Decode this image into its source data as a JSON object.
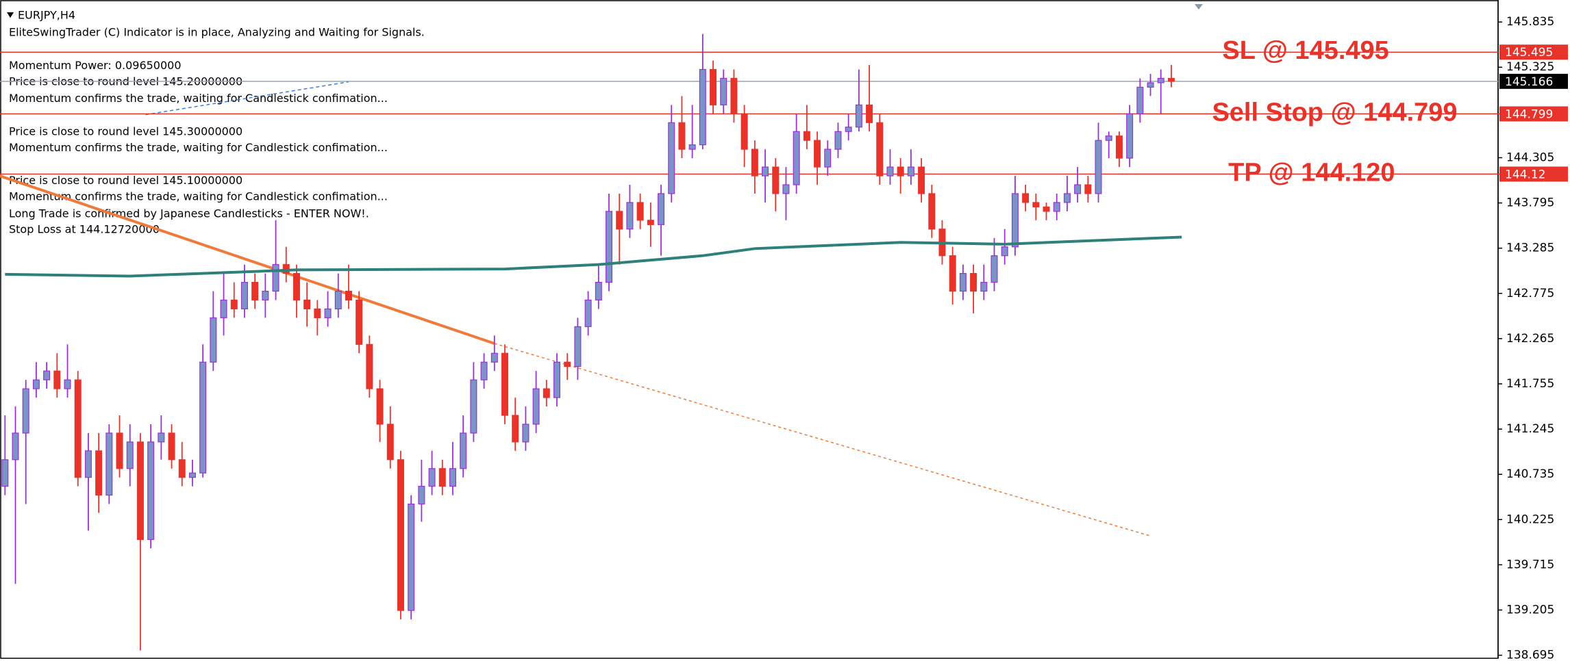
{
  "chart_data": {
    "type": "candlestick",
    "symbol": "EURJPY,H4",
    "info_lines": [
      "EliteSwingTrader (C) Indicator is in place, Analyzing and Waiting for Signals.",
      "Momentum Power: 0.09650000",
      "Price is close to round level 145.20000000",
      "Momentum confirms the trade, waiting for Candlestick confimation...",
      "Price is close to round level 145.30000000",
      "Momentum confirms the trade, waiting for Candlestick confimation...",
      "Price is close to round level 145.10000000",
      "Momentum confirms the trade, waiting for Candlestick confimation...",
      "Long Trade is confirmed by Japanese Candlesticks - ENTER NOW!.",
      "Stop Loss at 144.12720000"
    ],
    "ylim": [
      138.661,
      146.083
    ],
    "yticks": [
      145.835,
      145.325,
      144.305,
      143.795,
      143.285,
      142.775,
      142.265,
      141.755,
      141.245,
      140.735,
      140.225,
      139.715,
      139.205,
      138.695
    ],
    "levels": [
      {
        "value": 145.495,
        "annotation": "SL @ 145.495",
        "color": "#e8332b"
      },
      {
        "value": 144.799,
        "annotation": "Sell Stop @ 144.799",
        "color": "#e8332b"
      },
      {
        "value": 144.12,
        "annotation": "TP @ 144.120",
        "color": "#e8332b"
      }
    ],
    "current_price": 145.166,
    "bull_color": "#7b93c6",
    "bull_wick_color": "#9b30d9",
    "bear_color": "#e8332b",
    "candles": [
      [
        140.6,
        141.4,
        140.5,
        140.9
      ],
      [
        140.9,
        141.5,
        139.5,
        141.2
      ],
      [
        141.2,
        141.8,
        140.4,
        141.7
      ],
      [
        141.7,
        142.0,
        141.6,
        141.8
      ],
      [
        141.8,
        142.0,
        141.7,
        141.9
      ],
      [
        141.9,
        142.1,
        141.6,
        141.7
      ],
      [
        141.7,
        142.2,
        141.6,
        141.8
      ],
      [
        141.8,
        141.9,
        140.6,
        140.7
      ],
      [
        140.7,
        141.2,
        140.1,
        141.0
      ],
      [
        141.0,
        141.2,
        140.3,
        140.5
      ],
      [
        140.5,
        141.3,
        140.4,
        141.2
      ],
      [
        141.2,
        141.4,
        140.7,
        140.8
      ],
      [
        140.8,
        141.3,
        140.6,
        141.1
      ],
      [
        141.1,
        141.2,
        138.75,
        140.0
      ],
      [
        140.0,
        141.3,
        139.9,
        141.1
      ],
      [
        141.1,
        141.4,
        140.9,
        141.2
      ],
      [
        141.2,
        141.3,
        140.8,
        140.9
      ],
      [
        140.9,
        141.1,
        140.6,
        140.7
      ],
      [
        140.7,
        140.9,
        140.6,
        140.75
      ],
      [
        140.75,
        142.2,
        140.7,
        142.0
      ],
      [
        142.0,
        142.8,
        141.9,
        142.5
      ],
      [
        142.5,
        143.0,
        142.3,
        142.7
      ],
      [
        142.7,
        142.9,
        142.5,
        142.6
      ],
      [
        142.6,
        143.1,
        142.5,
        142.9
      ],
      [
        142.9,
        143.0,
        142.6,
        142.7
      ],
      [
        142.7,
        143.0,
        142.5,
        142.8
      ],
      [
        142.8,
        143.6,
        142.7,
        143.1
      ],
      [
        143.1,
        143.3,
        142.9,
        143.0
      ],
      [
        143.0,
        143.1,
        142.5,
        142.7
      ],
      [
        142.7,
        142.9,
        142.4,
        142.6
      ],
      [
        142.6,
        142.7,
        142.3,
        142.5
      ],
      [
        142.5,
        142.8,
        142.4,
        142.6
      ],
      [
        142.6,
        143.0,
        142.5,
        142.8
      ],
      [
        142.8,
        143.1,
        142.6,
        142.7
      ],
      [
        142.7,
        142.8,
        142.1,
        142.2
      ],
      [
        142.2,
        142.3,
        141.6,
        141.7
      ],
      [
        141.7,
        141.8,
        141.1,
        141.3
      ],
      [
        141.3,
        141.5,
        140.8,
        140.9
      ],
      [
        140.9,
        141.0,
        139.1,
        139.2
      ],
      [
        139.2,
        140.5,
        139.1,
        140.4
      ],
      [
        140.4,
        140.9,
        140.2,
        140.6
      ],
      [
        140.6,
        141.0,
        140.5,
        140.8
      ],
      [
        140.8,
        140.9,
        140.5,
        140.6
      ],
      [
        140.6,
        141.1,
        140.5,
        140.8
      ],
      [
        140.8,
        141.4,
        140.7,
        141.2
      ],
      [
        141.2,
        142.0,
        141.1,
        141.8
      ],
      [
        141.8,
        142.1,
        141.7,
        142.0
      ],
      [
        142.0,
        142.3,
        141.9,
        142.1
      ],
      [
        142.1,
        142.2,
        141.3,
        141.4
      ],
      [
        141.4,
        141.6,
        141.0,
        141.1
      ],
      [
        141.1,
        141.5,
        141.0,
        141.3
      ],
      [
        141.3,
        141.9,
        141.2,
        141.7
      ],
      [
        141.7,
        141.8,
        141.5,
        141.6
      ],
      [
        141.6,
        142.1,
        141.5,
        142.0
      ],
      [
        142.0,
        142.1,
        141.8,
        141.95
      ],
      [
        141.95,
        142.5,
        141.8,
        142.4
      ],
      [
        142.4,
        142.8,
        142.3,
        142.7
      ],
      [
        142.7,
        143.1,
        142.6,
        142.9
      ],
      [
        142.9,
        143.9,
        142.8,
        143.7
      ],
      [
        143.7,
        143.9,
        143.1,
        143.5
      ],
      [
        143.5,
        144.0,
        143.4,
        143.8
      ],
      [
        143.8,
        143.9,
        143.5,
        143.6
      ],
      [
        143.6,
        143.8,
        143.3,
        143.55
      ],
      [
        143.55,
        144.0,
        143.2,
        143.9
      ],
      [
        143.9,
        144.9,
        143.8,
        144.7
      ],
      [
        144.7,
        145.0,
        144.3,
        144.4
      ],
      [
        144.4,
        144.9,
        144.3,
        144.45
      ],
      [
        144.45,
        145.7,
        144.4,
        145.3
      ],
      [
        145.3,
        145.4,
        144.8,
        144.9
      ],
      [
        144.9,
        145.3,
        144.8,
        145.2
      ],
      [
        145.2,
        145.3,
        144.7,
        144.8
      ],
      [
        144.8,
        144.9,
        144.2,
        144.4
      ],
      [
        144.4,
        144.5,
        143.9,
        144.1
      ],
      [
        144.1,
        144.4,
        143.8,
        144.2
      ],
      [
        144.2,
        144.3,
        143.7,
        143.9
      ],
      [
        143.9,
        144.2,
        143.6,
        144.0
      ],
      [
        144.0,
        144.8,
        143.9,
        144.6
      ],
      [
        144.6,
        144.9,
        144.4,
        144.5
      ],
      [
        144.5,
        144.6,
        144.0,
        144.2
      ],
      [
        144.2,
        144.5,
        144.1,
        144.4
      ],
      [
        144.4,
        144.7,
        144.3,
        144.6
      ],
      [
        144.6,
        144.8,
        144.5,
        144.65
      ],
      [
        144.65,
        145.3,
        144.6,
        144.9
      ],
      [
        144.9,
        145.35,
        144.6,
        144.7
      ],
      [
        144.7,
        144.8,
        144.0,
        144.1
      ],
      [
        144.1,
        144.4,
        144.0,
        144.2
      ],
      [
        144.2,
        144.3,
        143.9,
        144.1
      ],
      [
        144.1,
        144.4,
        144.0,
        144.2
      ],
      [
        144.2,
        144.3,
        143.8,
        143.9
      ],
      [
        143.9,
        144.0,
        143.4,
        143.5
      ],
      [
        143.5,
        143.6,
        143.1,
        143.2
      ],
      [
        143.2,
        143.3,
        142.65,
        142.8
      ],
      [
        142.8,
        143.1,
        142.7,
        143.0
      ],
      [
        143.0,
        143.1,
        142.55,
        142.8
      ],
      [
        142.8,
        143.1,
        142.7,
        142.9
      ],
      [
        142.9,
        143.4,
        142.8,
        143.2
      ],
      [
        143.2,
        143.5,
        143.1,
        143.3
      ],
      [
        143.3,
        144.1,
        143.2,
        143.9
      ],
      [
        143.9,
        144.0,
        143.7,
        143.8
      ],
      [
        143.8,
        143.9,
        143.6,
        143.75
      ],
      [
        143.75,
        143.8,
        143.6,
        143.7
      ],
      [
        143.7,
        143.9,
        143.6,
        143.8
      ],
      [
        143.8,
        144.1,
        143.7,
        143.9
      ],
      [
        143.9,
        144.2,
        143.8,
        144.0
      ],
      [
        144.0,
        144.1,
        143.8,
        143.9
      ],
      [
        143.9,
        144.7,
        143.8,
        144.5
      ],
      [
        144.5,
        144.6,
        144.3,
        144.55
      ],
      [
        144.55,
        144.6,
        144.2,
        144.3
      ],
      [
        144.3,
        144.9,
        144.2,
        144.8
      ],
      [
        144.8,
        145.2,
        144.7,
        145.1
      ],
      [
        145.1,
        145.25,
        145.0,
        145.15
      ],
      [
        145.15,
        145.3,
        144.8,
        145.2
      ],
      [
        145.2,
        145.35,
        145.1,
        145.166
      ]
    ],
    "moving_average": {
      "color": "#2f7f7a",
      "x": [
        0,
        12,
        28,
        48,
        57,
        67,
        72,
        86,
        96,
        113
      ],
      "values": [
        142.99,
        142.97,
        143.04,
        143.05,
        143.1,
        143.2,
        143.28,
        143.35,
        143.33,
        143.41
      ]
    },
    "trendline": {
      "color": "#f07a3a",
      "x": [
        -0.5,
        47
      ],
      "values": [
        144.1,
        142.21
      ]
    },
    "trendline_projection": {
      "color": "#f07a3a",
      "x": [
        47,
        110
      ],
      "values": [
        142.21,
        140.04
      ]
    },
    "signal_line": {
      "color": "#3a7ee0",
      "x": [
        13.5,
        33
      ],
      "values": [
        144.79,
        145.16
      ]
    }
  }
}
